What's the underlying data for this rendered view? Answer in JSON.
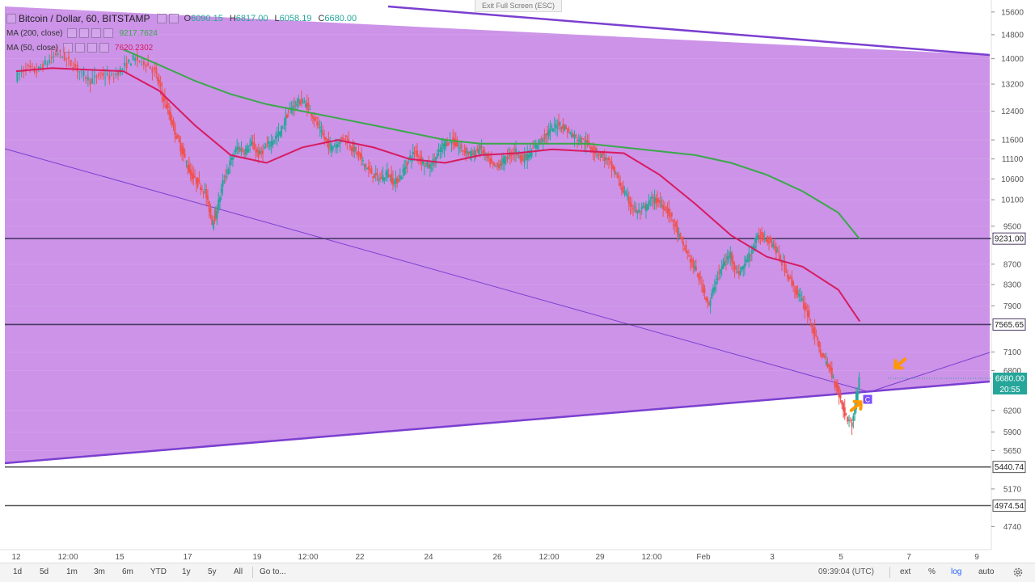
{
  "toolbar": {
    "exit_fullscreen": "Exit Full Screen (ESC)"
  },
  "legend": {
    "symbol": "Bitcoin / Dollar, 60, BITSTAMP",
    "ohlc": [
      {
        "label": "O",
        "value": "6090.15"
      },
      {
        "label": "H",
        "value": "6817.00"
      },
      {
        "label": "L",
        "value": "6058.19"
      },
      {
        "label": "C",
        "value": "6680.00"
      }
    ],
    "ma200": {
      "label": "MA (200, close)",
      "value": "9217.7624",
      "color": "#3aa84a"
    },
    "ma50": {
      "label": "MA (50, close)",
      "value": "7620.2302",
      "color": "#d81b60"
    }
  },
  "chart_data": {
    "type": "candlestick",
    "title": "Bitcoin / Dollar, 60, BITSTAMP",
    "yscale": "log",
    "ylim": [
      4560,
      15800
    ],
    "y_ticks": [
      4740,
      5170,
      5650,
      5900,
      6200,
      6800,
      7100,
      7900,
      8300,
      8700,
      9500,
      10100,
      10600,
      11100,
      11600,
      12400,
      13200,
      14000,
      14800,
      15600
    ],
    "x_ticks": [
      "12",
      "12:00",
      "15",
      "17",
      "19",
      "12:00",
      "22",
      "24",
      "26",
      "12:00",
      "29",
      "12:00",
      "Feb",
      "3",
      "5",
      "7",
      "9"
    ],
    "price_lines": [
      {
        "value": 9231.0,
        "label": "9231.00",
        "color": "#4a3a66"
      },
      {
        "value": 7565.65,
        "label": "7565.65",
        "color": "#4a3a66"
      },
      {
        "value": 5440.74,
        "label": "5440.74",
        "color": "#555555"
      },
      {
        "value": 4974.54,
        "label": "4974.54",
        "color": "#555555"
      }
    ],
    "last_price": {
      "value": "6680.00",
      "countdown": "20:55",
      "color": "#26a69a"
    },
    "triangle_fill": "#c88ae6",
    "triangle_line": "#7b3fd0",
    "up_color": "#26a69a",
    "down_color": "#ef5350",
    "ma200_color": "#3aa84a",
    "ma50_color": "#d81b60",
    "annotations": [
      {
        "type": "arrow",
        "color": "#ff9800"
      },
      {
        "type": "arrow",
        "color": "#ff9800"
      },
      {
        "type": "marker",
        "label": "C",
        "color": "#7c4dff"
      }
    ],
    "close_path": [
      [
        12,
        13400
      ],
      [
        12.3,
        13700
      ],
      [
        12.6,
        13600
      ],
      [
        12.9,
        13900
      ],
      [
        13.2,
        14200
      ],
      [
        13.5,
        13900
      ],
      [
        13.8,
        13600
      ],
      [
        14.1,
        13300
      ],
      [
        14.4,
        13500
      ],
      [
        14.7,
        13400
      ],
      [
        15.0,
        13700
      ],
      [
        15.3,
        14000
      ],
      [
        15.6,
        13900
      ],
      [
        15.9,
        13600
      ],
      [
        16.1,
        12900
      ],
      [
        16.3,
        12300
      ],
      [
        16.5,
        11700
      ],
      [
        16.7,
        11200
      ],
      [
        16.9,
        10700
      ],
      [
        17.1,
        10500
      ],
      [
        17.3,
        10300
      ],
      [
        17.5,
        9600
      ],
      [
        17.6,
        9750
      ],
      [
        17.8,
        10500
      ],
      [
        18.0,
        11000
      ],
      [
        18.2,
        11400
      ],
      [
        18.4,
        11300
      ],
      [
        18.6,
        11500
      ],
      [
        18.8,
        11200
      ],
      [
        19.0,
        11400
      ],
      [
        19.2,
        11600
      ],
      [
        19.4,
        11800
      ],
      [
        19.6,
        12300
      ],
      [
        19.8,
        12600
      ],
      [
        20.0,
        12700
      ],
      [
        20.2,
        12500
      ],
      [
        20.4,
        12100
      ],
      [
        20.6,
        11700
      ],
      [
        20.8,
        11400
      ],
      [
        21.0,
        11500
      ],
      [
        21.2,
        11700
      ],
      [
        21.4,
        11400
      ],
      [
        21.6,
        11200
      ],
      [
        21.8,
        10900
      ],
      [
        22.0,
        10700
      ],
      [
        22.2,
        10600
      ],
      [
        22.4,
        10750
      ],
      [
        22.6,
        10500
      ],
      [
        22.8,
        10700
      ],
      [
        23.0,
        11100
      ],
      [
        23.2,
        11300
      ],
      [
        23.4,
        11000
      ],
      [
        23.6,
        10900
      ],
      [
        23.8,
        11200
      ],
      [
        24.0,
        11500
      ],
      [
        24.2,
        11600
      ],
      [
        24.4,
        11400
      ],
      [
        24.6,
        11300
      ],
      [
        24.8,
        11200
      ],
      [
        25.0,
        11400
      ],
      [
        25.2,
        11100
      ],
      [
        25.4,
        10900
      ],
      [
        25.6,
        11000
      ],
      [
        25.8,
        11200
      ],
      [
        26.0,
        11300
      ],
      [
        26.2,
        11100
      ],
      [
        26.4,
        11250
      ],
      [
        26.6,
        11500
      ],
      [
        26.8,
        11700
      ],
      [
        27.0,
        11900
      ],
      [
        27.2,
        12050
      ],
      [
        27.4,
        11900
      ],
      [
        27.6,
        11700
      ],
      [
        27.8,
        11600
      ],
      [
        28.0,
        11500
      ],
      [
        28.2,
        11300
      ],
      [
        28.4,
        11200
      ],
      [
        28.6,
        11000
      ],
      [
        28.8,
        10700
      ],
      [
        29.0,
        10300
      ],
      [
        29.2,
        10000
      ],
      [
        29.4,
        9800
      ],
      [
        29.6,
        9900
      ],
      [
        29.8,
        10100
      ],
      [
        30.0,
        10050
      ],
      [
        30.2,
        9900
      ],
      [
        30.4,
        9600
      ],
      [
        30.6,
        9200
      ],
      [
        30.8,
        8900
      ],
      [
        31.0,
        8600
      ],
      [
        31.2,
        8300
      ],
      [
        31.4,
        7900
      ],
      [
        31.6,
        8400
      ],
      [
        31.8,
        8700
      ],
      [
        32.0,
        8900
      ],
      [
        32.2,
        8500
      ],
      [
        32.4,
        8700
      ],
      [
        32.6,
        9000
      ],
      [
        32.8,
        9300
      ],
      [
        33.0,
        9250
      ],
      [
        33.2,
        9100
      ],
      [
        33.4,
        8800
      ],
      [
        33.6,
        8500
      ],
      [
        33.8,
        8200
      ],
      [
        34.0,
        8000
      ],
      [
        34.2,
        7700
      ],
      [
        34.4,
        7300
      ],
      [
        34.6,
        7000
      ],
      [
        34.8,
        6800
      ],
      [
        35.0,
        6500
      ],
      [
        35.2,
        6150
      ],
      [
        35.4,
        6000
      ],
      [
        35.6,
        6680
      ]
    ],
    "ma50": [
      [
        12,
        13600
      ],
      [
        13,
        13700
      ],
      [
        14,
        13650
      ],
      [
        15,
        13600
      ],
      [
        16,
        13000
      ],
      [
        17,
        12000
      ],
      [
        18,
        11200
      ],
      [
        19,
        11000
      ],
      [
        20,
        11400
      ],
      [
        21,
        11600
      ],
      [
        22,
        11400
      ],
      [
        23,
        11100
      ],
      [
        24,
        11000
      ],
      [
        25,
        11200
      ],
      [
        26,
        11250
      ],
      [
        27,
        11350
      ],
      [
        28,
        11300
      ],
      [
        29,
        11250
      ],
      [
        30,
        10700
      ],
      [
        31,
        10000
      ],
      [
        32,
        9300
      ],
      [
        33,
        8850
      ],
      [
        34,
        8650
      ],
      [
        35,
        8200
      ],
      [
        35.6,
        7620
      ]
    ],
    "ma200": [
      [
        15,
        14300
      ],
      [
        16,
        13800
      ],
      [
        17,
        13300
      ],
      [
        18,
        12900
      ],
      [
        19,
        12600
      ],
      [
        20,
        12400
      ],
      [
        21,
        12200
      ],
      [
        22,
        12000
      ],
      [
        23,
        11800
      ],
      [
        24,
        11600
      ],
      [
        25,
        11500
      ],
      [
        26,
        11500
      ],
      [
        27,
        11500
      ],
      [
        28,
        11500
      ],
      [
        29,
        11400
      ],
      [
        30,
        11300
      ],
      [
        31,
        11200
      ],
      [
        32,
        11000
      ],
      [
        33,
        10700
      ],
      [
        34,
        10300
      ],
      [
        35,
        9800
      ],
      [
        35.6,
        9218
      ]
    ]
  },
  "bottom": {
    "ranges": [
      "1d",
      "5d",
      "1m",
      "3m",
      "6m",
      "YTD",
      "1y",
      "5y",
      "All"
    ],
    "goto": "Go to...",
    "time": "09:39:04 (UTC)",
    "right_buttons": [
      "ext",
      "%",
      "log",
      "auto"
    ],
    "active_scale": "log"
  }
}
